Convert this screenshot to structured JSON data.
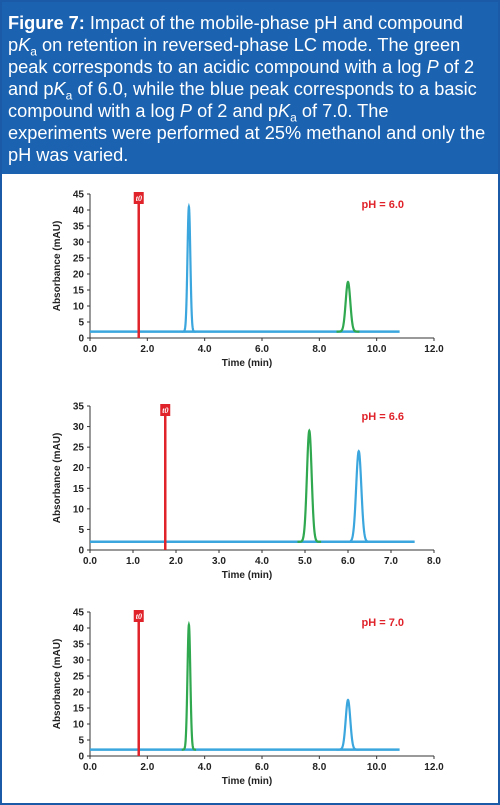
{
  "caption": {
    "figure_label": "Figure 7:",
    "p1": " Impact of the mobile-phase pH and compound p",
    "k1": "K",
    "a1": "a",
    "p2": " on retention in reversed-phase LC mode. The green peak corresponds to an acidic compound with a log ",
    "P1": "P",
    "p3": " of 2 and p",
    "k2": "K",
    "a2": "a",
    "p4": " of 6.0, while the blue peak corresponds to a basic compound with a log ",
    "P2": "P",
    "p5": " of 2 and p",
    "k3": "K",
    "a3": "a",
    "p6": " of 7.0. The experiments were performed at 25% methanol and only the pH was varied."
  },
  "colors": {
    "acid": "#2fa84f",
    "base": "#3aa6dd",
    "t0": "#e0222a",
    "axis": "#333333"
  },
  "chart_data": [
    {
      "type": "line",
      "xlabel": "Time (min)",
      "ylabel": "Absorbance (mAU)",
      "annotation": "pH = 6.0",
      "t0_label": "t0",
      "t0": 1.7,
      "xlim": [
        0,
        12
      ],
      "ylim": [
        0,
        45
      ],
      "xticks": [
        "0.0",
        "2.0",
        "4.0",
        "6.0",
        "8.0",
        "10.0",
        "12.0"
      ],
      "yticks": [
        "0",
        "5",
        "10",
        "15",
        "20",
        "25",
        "30",
        "35",
        "40",
        "45"
      ],
      "baseline": 2,
      "x_end": 10.8,
      "series": [
        {
          "color": "base",
          "peak_time": 3.45,
          "height": 41,
          "width": 0.05
        },
        {
          "color": "acid",
          "peak_time": 9.0,
          "height": 17.5,
          "width": 0.08
        }
      ]
    },
    {
      "type": "line",
      "xlabel": "Time (min)",
      "ylabel": "Absorbance (mAU)",
      "annotation": "pH = 6.6",
      "t0_label": "t0",
      "t0": 1.75,
      "xlim": [
        0,
        8
      ],
      "ylim": [
        0,
        35
      ],
      "xticks": [
        "0.0",
        "1.0",
        "2.0",
        "3.0",
        "4.0",
        "5.0",
        "6.0",
        "7.0",
        "8.0"
      ],
      "yticks": [
        "0",
        "5",
        "10",
        "15",
        "20",
        "25",
        "30",
        "35"
      ],
      "baseline": 2,
      "x_end": 7.55,
      "series": [
        {
          "color": "acid",
          "peak_time": 5.1,
          "height": 29,
          "width": 0.055
        },
        {
          "color": "base",
          "peak_time": 6.25,
          "height": 24,
          "width": 0.06
        }
      ]
    },
    {
      "type": "line",
      "xlabel": "Time (min)",
      "ylabel": "Absorbance (mAU)",
      "annotation": "pH = 7.0",
      "t0_label": "t0",
      "t0": 1.7,
      "xlim": [
        0,
        12
      ],
      "ylim": [
        0,
        45
      ],
      "xticks": [
        "0.0",
        "2.0",
        "4.0",
        "6.0",
        "8.0",
        "10.0",
        "12.0"
      ],
      "yticks": [
        "0",
        "5",
        "10",
        "15",
        "20",
        "25",
        "30",
        "35",
        "40",
        "45"
      ],
      "baseline": 2,
      "x_end": 10.8,
      "series": [
        {
          "color": "acid",
          "peak_time": 3.45,
          "height": 41,
          "width": 0.05
        },
        {
          "color": "base",
          "peak_time": 9.0,
          "height": 17.5,
          "width": 0.08
        }
      ]
    }
  ]
}
